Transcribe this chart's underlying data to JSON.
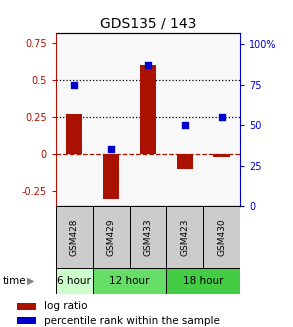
{
  "title": "GDS135 / 143",
  "samples": [
    "GSM428",
    "GSM429",
    "GSM433",
    "GSM423",
    "GSM430"
  ],
  "log_ratio": [
    0.27,
    -0.3,
    0.6,
    -0.1,
    -0.02
  ],
  "percentile_rank": [
    75,
    35,
    87,
    50,
    55
  ],
  "bar_color": "#aa1100",
  "dot_color": "#0000cc",
  "left_ylim": [
    -0.35,
    0.82
  ],
  "right_ylim": [
    0,
    107
  ],
  "left_yticks": [
    -0.25,
    0,
    0.25,
    0.5,
    0.75
  ],
  "right_yticks": [
    0,
    25,
    50,
    75,
    100
  ],
  "hline_values": [
    0.5,
    0.25,
    0.0
  ],
  "hline_styles": [
    "dotted",
    "dotted",
    "dashed"
  ],
  "hline_colors": [
    "black",
    "black",
    "#aa1100"
  ],
  "bar_width": 0.45,
  "time_spans": [
    {
      "label": "6 hour",
      "start": 0,
      "end": 0,
      "color": "#ccffcc"
    },
    {
      "label": "12 hour",
      "start": 1,
      "end": 2,
      "color": "#66dd66"
    },
    {
      "label": "18 hour",
      "start": 3,
      "end": 4,
      "color": "#44cc44"
    }
  ]
}
